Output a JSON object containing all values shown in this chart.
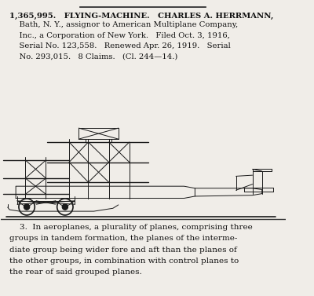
{
  "bg_color": "#f0ede8",
  "top_rule_color": "#222222",
  "text_color": "#111111",
  "title_line": "1,365,995.   FLYING-MACHINE.   CHARLES A. HERRMANN,",
  "body_lines": [
    "    Bath, N. Y., assignor to American Multiplane Company,",
    "    Inc., a Corporation of New York.   Filed Oct. 3, 1916,",
    "    Serial No. 123,558.   Renewed Apr. 26, 1919.   Serial",
    "    No. 293,015.   8 Claims.   (Cl. 244—14.)"
  ],
  "claim_text": [
    "    3.  In aeroplanes, a plurality of planes, comprising three",
    "groups in tandem formation, the planes of the interme-",
    "diate group being wider fore and aft than the planes of",
    "the other groups, in combination with control planes to",
    "the rear of said grouped planes."
  ],
  "title_fontsize": 7.2,
  "body_fontsize": 7.2,
  "claim_fontsize": 7.5
}
